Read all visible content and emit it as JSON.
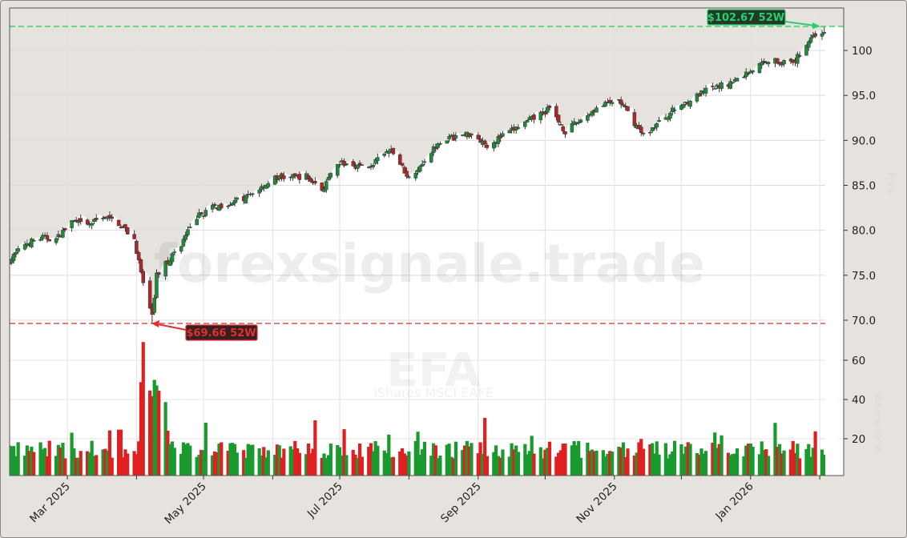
{
  "chart_data": {
    "type": "candlestick",
    "ticker": "EFA",
    "name": "iShares MSCI EAFE",
    "watermark": "forexsignale.trade",
    "price_axis": {
      "ticks": [
        "70.0",
        "75.0",
        "80.0",
        "85.0",
        "90.0",
        "95.0",
        "100"
      ],
      "range": [
        66.2,
        104.5
      ],
      "label": "Price"
    },
    "volume_axis": {
      "ticks": [
        "20",
        "40",
        "60"
      ],
      "label": "Volume 10^6"
    },
    "x_ticks": [
      "Mar 2025",
      "May 2025",
      "Jul 2025",
      "Sep 2025",
      "Nov 2025",
      "Jan 2026"
    ],
    "annotations": {
      "high_52w": {
        "value": 102.67,
        "label": "$102.67 52W",
        "color": "#2ecc71"
      },
      "low_52w": {
        "value": 69.66,
        "label": "$69.66 52W",
        "color": "#e03030"
      }
    },
    "colors": {
      "up": "#1e8c3a",
      "down": "#b0272a",
      "vol_up": "#1a9a2e",
      "vol_down": "#e02020",
      "background": "#e6e3de",
      "plot_bg": "#ffffff"
    },
    "close_path": [
      {
        "d": "2025-02-03",
        "c": 76.6
      },
      {
        "d": "2025-02-10",
        "c": 78.5
      },
      {
        "d": "2025-02-18",
        "c": 79.2
      },
      {
        "d": "2025-02-24",
        "c": 79.0
      },
      {
        "d": "2025-03-03",
        "c": 81.0
      },
      {
        "d": "2025-03-10",
        "c": 80.5
      },
      {
        "d": "2025-03-17",
        "c": 81.6
      },
      {
        "d": "2025-03-24",
        "c": 80.8
      },
      {
        "d": "2025-03-31",
        "c": 79.0
      },
      {
        "d": "2025-04-04",
        "c": 74.0
      },
      {
        "d": "2025-04-08",
        "c": 70.5
      },
      {
        "d": "2025-04-10",
        "c": 75.0
      },
      {
        "d": "2025-04-21",
        "c": 78.5
      },
      {
        "d": "2025-04-28",
        "c": 81.5
      },
      {
        "d": "2025-05-05",
        "c": 82.5
      },
      {
        "d": "2025-05-19",
        "c": 83.5
      },
      {
        "d": "2025-06-02",
        "c": 85.8
      },
      {
        "d": "2025-06-16",
        "c": 86.0
      },
      {
        "d": "2025-06-23",
        "c": 84.5
      },
      {
        "d": "2025-07-01",
        "c": 87.5
      },
      {
        "d": "2025-07-14",
        "c": 87.0
      },
      {
        "d": "2025-07-24",
        "c": 89.0
      },
      {
        "d": "2025-08-01",
        "c": 85.8
      },
      {
        "d": "2025-08-15",
        "c": 90.0
      },
      {
        "d": "2025-08-29",
        "c": 90.8
      },
      {
        "d": "2025-09-05",
        "c": 89.5
      },
      {
        "d": "2025-09-19",
        "c": 91.5
      },
      {
        "d": "2025-10-03",
        "c": 93.5
      },
      {
        "d": "2025-10-10",
        "c": 91.0
      },
      {
        "d": "2025-10-24",
        "c": 93.6
      },
      {
        "d": "2025-11-03",
        "c": 94.5
      },
      {
        "d": "2025-11-14",
        "c": 90.5
      },
      {
        "d": "2025-11-28",
        "c": 93.5
      },
      {
        "d": "2025-12-12",
        "c": 95.5
      },
      {
        "d": "2025-12-24",
        "c": 96.5
      },
      {
        "d": "2026-01-09",
        "c": 99.0
      },
      {
        "d": "2026-01-20",
        "c": 98.5
      },
      {
        "d": "2026-01-28",
        "c": 101.5
      },
      {
        "d": "2026-02-03",
        "c": 102.2
      }
    ]
  },
  "ui": {
    "watermark_text": "forexsignale.trade",
    "ticker_watermark": "EFA",
    "ticker_subtitle": "iShares MSCI EAFE",
    "high_label": "$102.67 52W",
    "low_label": "$69.66 52W",
    "price_axis_label": "Price",
    "volume_axis_label": "Volume 10^6"
  }
}
